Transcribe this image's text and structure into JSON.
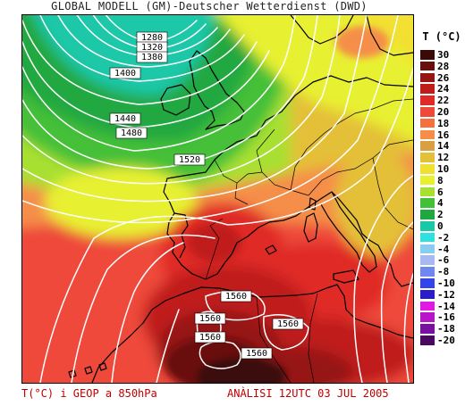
{
  "header": {
    "title": "GLOBAL MODELL (GM)-Deutscher Wetterdienst (DWD)"
  },
  "legend": {
    "title": "T (°C)",
    "entries": [
      {
        "label": "30",
        "color": "#3a0a08"
      },
      {
        "label": "28",
        "color": "#6a100c"
      },
      {
        "label": "26",
        "color": "#961612"
      },
      {
        "label": "24",
        "color": "#c01c1a"
      },
      {
        "label": "22",
        "color": "#e02a28"
      },
      {
        "label": "20",
        "color": "#ee4a3a"
      },
      {
        "label": "18",
        "color": "#f4723e"
      },
      {
        "label": "16",
        "color": "#f58e48"
      },
      {
        "label": "14",
        "color": "#d8a040"
      },
      {
        "label": "12",
        "color": "#e4c038"
      },
      {
        "label": "10",
        "color": "#f2e030"
      },
      {
        "label": "8",
        "color": "#e8f030"
      },
      {
        "label": "6",
        "color": "#a8e030"
      },
      {
        "label": "4",
        "color": "#44c038"
      },
      {
        "label": "2",
        "color": "#20a840"
      },
      {
        "label": "0",
        "color": "#1ac8a8"
      },
      {
        "label": "-2",
        "color": "#30e0e0"
      },
      {
        "label": "-4",
        "color": "#88ccf0"
      },
      {
        "label": "-6",
        "color": "#a8b8f0"
      },
      {
        "label": "-8",
        "color": "#6f88f0"
      },
      {
        "label": "-10",
        "color": "#3046e8"
      },
      {
        "label": "-12",
        "color": "#2a1cc8"
      },
      {
        "label": "-14",
        "color": "#e01ae0"
      },
      {
        "label": "-16",
        "color": "#b814c8"
      },
      {
        "label": "-18",
        "color": "#7a10a0"
      },
      {
        "label": "-20",
        "color": "#4a0860"
      }
    ]
  },
  "map": {
    "isohypses": [
      {
        "label": "1280"
      },
      {
        "label": "1320"
      },
      {
        "label": "1380"
      },
      {
        "label": "1400"
      },
      {
        "label": "1440"
      },
      {
        "label": "1480"
      },
      {
        "label": "1520"
      },
      {
        "label": "1560"
      },
      {
        "label": "1560"
      },
      {
        "label": "1560"
      },
      {
        "label": "1560"
      },
      {
        "label": "1560"
      }
    ]
  },
  "footer": {
    "variable": "T(°C) i GEOP a 850hPa",
    "analysis": "ANÀLISI 12UTC 03 JUL 2005"
  }
}
